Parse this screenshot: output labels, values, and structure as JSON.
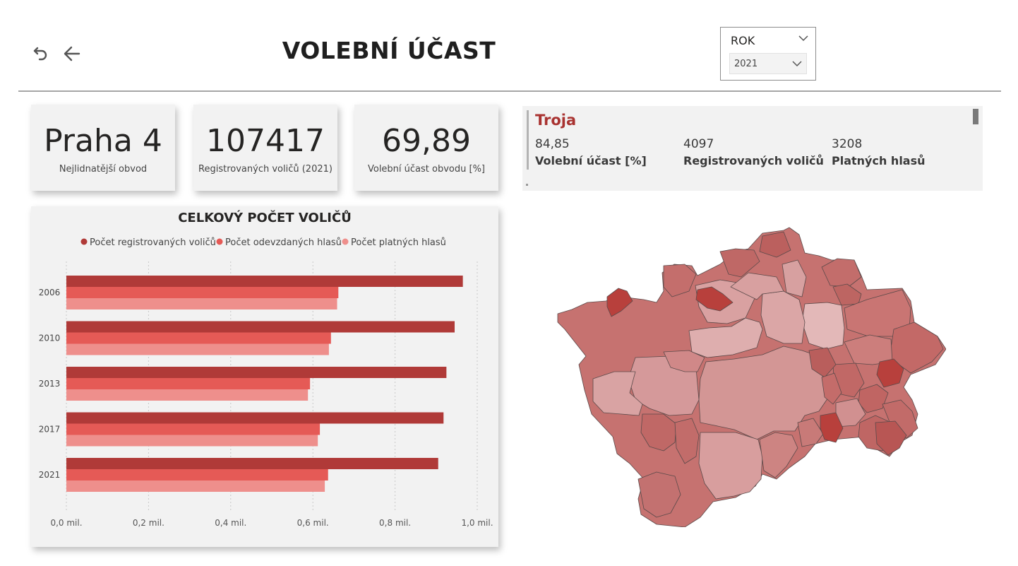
{
  "header": {
    "title": "VOLEBNÍ ÚČAST",
    "reset_icon": "reset-icon",
    "back_icon": "back-arrow-icon"
  },
  "slicer": {
    "title": "ROK",
    "value": "2021"
  },
  "kpis": [
    {
      "value": "Praha 4",
      "label": "Nejlidnatější obvod"
    },
    {
      "value": "107417",
      "label": "Registrovaných voličů (2021)"
    },
    {
      "value": "69,89",
      "label": "Volební účast obvodu [%]"
    }
  ],
  "info": {
    "title": "Troja",
    "items": [
      {
        "value": "84,85",
        "label": "Volební účast [%]"
      },
      {
        "value": "4097",
        "label": "Registrovaných voličů"
      },
      {
        "value": "3208",
        "label": "Platných hlasů"
      }
    ]
  },
  "colors": {
    "series1": "#b03a38",
    "series2": "#e55a56",
    "series3": "#ee8f8c",
    "accent": "#a93331"
  },
  "chart_data": {
    "type": "bar",
    "orientation": "horizontal",
    "title": "CELKOVÝ POČET VOLIČŮ",
    "categories": [
      "2006",
      "2010",
      "2013",
      "2017",
      "2021"
    ],
    "series": [
      {
        "name": "Počet registrovaných voličů",
        "values": [
          0.965,
          0.945,
          0.925,
          0.918,
          0.905
        ]
      },
      {
        "name": "Počet odevzdaných hlasů",
        "values": [
          0.662,
          0.644,
          0.593,
          0.617,
          0.637
        ]
      },
      {
        "name": "Počet platných hlasů",
        "values": [
          0.659,
          0.639,
          0.588,
          0.612,
          0.629
        ]
      }
    ],
    "x_unit": "mil.",
    "xlim": [
      0,
      1.0
    ],
    "x_ticks": [
      "0,0 mil.",
      "0,2 mil.",
      "0,4 mil.",
      "0,6 mil.",
      "0,8 mil.",
      "1,0 mil."
    ],
    "legend_position": "top-center",
    "grid": true
  }
}
